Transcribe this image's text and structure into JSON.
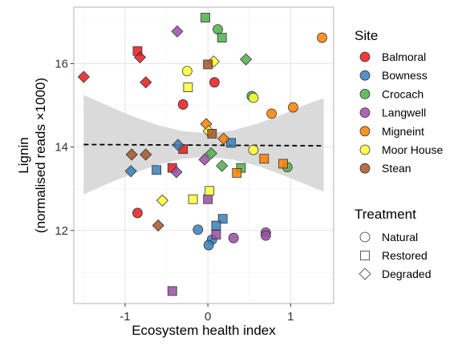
{
  "chart_data": {
    "type": "scatter",
    "xlabel": "Ecosystem health index",
    "ylabel_line1": "Lignin",
    "ylabel_line2": "(normalised reads ×1000)",
    "xlim": [
      -1.62,
      1.52
    ],
    "ylim": [
      10.25,
      17.35
    ],
    "x_ticks": [
      -1,
      0,
      1
    ],
    "x_tick_labels": [
      "-1",
      "0",
      "1"
    ],
    "y_ticks": [
      12,
      14,
      16
    ],
    "y_tick_labels": [
      "12",
      "14",
      "16"
    ],
    "grid": true,
    "trend": {
      "x0": -1.5,
      "x1": 1.4,
      "y0": 14.06,
      "y1": 14.03,
      "style": "dashed"
    },
    "ribbon": {
      "x": [
        -1.5,
        -1.2,
        -0.9,
        -0.6,
        -0.3,
        0.0,
        0.3,
        0.6,
        0.9,
        1.2,
        1.4
      ],
      "upper": [
        15.25,
        14.98,
        14.73,
        14.52,
        14.38,
        14.33,
        14.4,
        14.56,
        14.78,
        15.03,
        15.17
      ],
      "lower": [
        12.87,
        13.13,
        13.37,
        13.58,
        13.72,
        13.77,
        13.7,
        13.55,
        13.33,
        13.09,
        12.93
      ]
    },
    "site_legend_title": "Site",
    "treatment_legend_title": "Treatment",
    "series": [
      {
        "name": "Balmoral",
        "color": "#e41a1c",
        "points": [
          {
            "x": -1.5,
            "y": 15.68,
            "t": "Degraded"
          },
          {
            "x": -0.85,
            "y": 16.3,
            "t": "Restored"
          },
          {
            "x": -0.82,
            "y": 16.15,
            "t": "Degraded"
          },
          {
            "x": -0.75,
            "y": 15.55,
            "t": "Degraded"
          },
          {
            "x": -0.3,
            "y": 15.02,
            "t": "Natural"
          },
          {
            "x": 0.08,
            "y": 15.55,
            "t": "Natural"
          },
          {
            "x": -0.85,
            "y": 12.42,
            "t": "Natural"
          },
          {
            "x": -0.43,
            "y": 13.5,
            "t": "Restored"
          },
          {
            "x": -0.3,
            "y": 13.95,
            "t": "Restored"
          }
        ]
      },
      {
        "name": "Bowness",
        "color": "#377eb8",
        "points": [
          {
            "x": -0.36,
            "y": 14.05,
            "t": "Degraded"
          },
          {
            "x": -0.62,
            "y": 13.45,
            "t": "Restored"
          },
          {
            "x": -0.93,
            "y": 13.42,
            "t": "Degraded"
          },
          {
            "x": 0.28,
            "y": 14.1,
            "t": "Restored"
          },
          {
            "x": 0.18,
            "y": 12.28,
            "t": "Restored"
          },
          {
            "x": 0.1,
            "y": 12.12,
            "t": "Restored"
          },
          {
            "x": -0.12,
            "y": 12.02,
            "t": "Natural"
          },
          {
            "x": 0.05,
            "y": 11.78,
            "t": "Natural"
          },
          {
            "x": 0.01,
            "y": 11.65,
            "t": "Natural"
          }
        ]
      },
      {
        "name": "Crocach",
        "color": "#4daf4a",
        "points": [
          {
            "x": -0.03,
            "y": 17.1,
            "t": "Restored"
          },
          {
            "x": 0.12,
            "y": 16.82,
            "t": "Natural"
          },
          {
            "x": 0.17,
            "y": 16.62,
            "t": "Restored"
          },
          {
            "x": 0.46,
            "y": 16.1,
            "t": "Degraded"
          },
          {
            "x": 0.53,
            "y": 15.22,
            "t": "Natural"
          },
          {
            "x": 0.04,
            "y": 13.85,
            "t": "Degraded"
          },
          {
            "x": 0.17,
            "y": 13.55,
            "t": "Degraded"
          },
          {
            "x": 0.4,
            "y": 13.5,
            "t": "Restored"
          },
          {
            "x": 0.96,
            "y": 13.52,
            "t": "Natural"
          }
        ]
      },
      {
        "name": "Langwell",
        "color": "#984ea3",
        "points": [
          {
            "x": -0.37,
            "y": 16.77,
            "t": "Degraded"
          },
          {
            "x": -0.04,
            "y": 13.7,
            "t": "Degraded"
          },
          {
            "x": -0.38,
            "y": 13.4,
            "t": "Degraded"
          },
          {
            "x": 0.0,
            "y": 12.75,
            "t": "Restored"
          },
          {
            "x": 0.1,
            "y": 11.9,
            "t": "Restored"
          },
          {
            "x": 0.31,
            "y": 11.82,
            "t": "Natural"
          },
          {
            "x": 0.7,
            "y": 11.95,
            "t": "Natural"
          },
          {
            "x": 0.7,
            "y": 11.88,
            "t": "Natural"
          },
          {
            "x": -0.43,
            "y": 10.55,
            "t": "Restored"
          }
        ]
      },
      {
        "name": "Migneint",
        "color": "#ff7f00",
        "points": [
          {
            "x": 1.38,
            "y": 16.62,
            "t": "Natural"
          },
          {
            "x": 1.03,
            "y": 14.95,
            "t": "Natural"
          },
          {
            "x": 0.77,
            "y": 14.8,
            "t": "Natural"
          },
          {
            "x": -0.02,
            "y": 14.55,
            "t": "Degraded"
          },
          {
            "x": 0.19,
            "y": 14.2,
            "t": "Degraded"
          },
          {
            "x": 0.68,
            "y": 13.72,
            "t": "Restored"
          },
          {
            "x": 0.91,
            "y": 13.6,
            "t": "Restored"
          },
          {
            "x": 0.35,
            "y": 13.38,
            "t": "Restored"
          }
        ]
      },
      {
        "name": "Moor House",
        "color": "#ffff33",
        "points": [
          {
            "x": 0.07,
            "y": 16.05,
            "t": "Degraded"
          },
          {
            "x": -0.25,
            "y": 15.82,
            "t": "Natural"
          },
          {
            "x": -0.24,
            "y": 15.43,
            "t": "Restored"
          },
          {
            "x": 0.55,
            "y": 15.18,
            "t": "Natural"
          },
          {
            "x": 0.01,
            "y": 14.38,
            "t": "Degraded"
          },
          {
            "x": 0.55,
            "y": 13.93,
            "t": "Natural"
          },
          {
            "x": 0.02,
            "y": 12.95,
            "t": "Restored"
          },
          {
            "x": -0.18,
            "y": 12.75,
            "t": "Restored"
          },
          {
            "x": -0.55,
            "y": 12.72,
            "t": "Degraded"
          }
        ]
      },
      {
        "name": "Stean",
        "color": "#a65628",
        "points": [
          {
            "x": 0.0,
            "y": 15.98,
            "t": "Restored"
          },
          {
            "x": 0.05,
            "y": 14.32,
            "t": "Restored"
          },
          {
            "x": -0.92,
            "y": 13.82,
            "t": "Degraded"
          },
          {
            "x": -0.75,
            "y": 13.82,
            "t": "Degraded"
          },
          {
            "x": -0.6,
            "y": 12.12,
            "t": "Degraded"
          }
        ]
      }
    ],
    "treatments": [
      {
        "name": "Natural",
        "shape": "circle"
      },
      {
        "name": "Restored",
        "shape": "square"
      },
      {
        "name": "Degraded",
        "shape": "diamond"
      }
    ]
  }
}
